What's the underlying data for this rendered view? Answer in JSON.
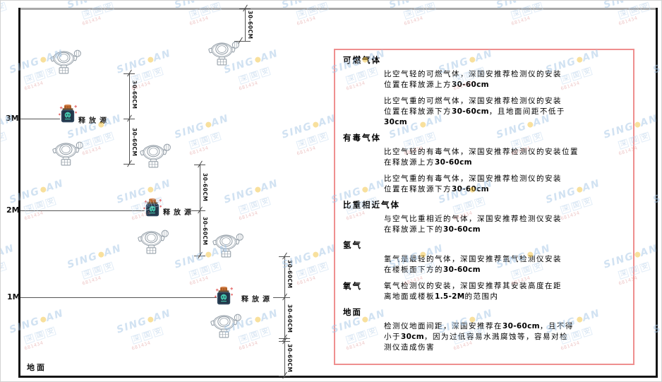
{
  "watermark": {
    "brand_left": "SING",
    "brand_right": "AN",
    "cjk": "深国安",
    "code": "681434"
  },
  "diagram": {
    "axis_labels": {
      "m3": "3M",
      "m2": "2M",
      "m1": "1M"
    },
    "ground_label": "地面",
    "source_label": "释放源",
    "dim_label": "30-60CM"
  },
  "panel": {
    "sections": [
      {
        "heading": "可燃气体",
        "inline": false,
        "paras": [
          [
            "比空气轻的可燃气体，深国安推荐检测仪的安装",
            "位置在释放源上方30-60cm"
          ],
          [
            "比空气重的可燃气体，深国安推荐检测仪的安装",
            "位置在释放源下方30-60cm，且地面间距不低于",
            "30cm"
          ]
        ]
      },
      {
        "heading": "有毒气体",
        "inline": false,
        "paras": [
          [
            "比空气轻的有毒气体，深国安推荐检测仪的安装位置",
            "在释放源上方30-60cm"
          ],
          [
            "比空气重的有毒气体，深国安推荐检测仪的安装",
            "位置在释放源下方30-60cm"
          ]
        ]
      },
      {
        "heading": "比重相近气体",
        "inline": false,
        "paras": [
          [
            "与空气比重相近的气体，深国安推荐检测仪安装",
            "在释放源上下的30-60cm"
          ]
        ]
      },
      {
        "heading": "氢气",
        "inline": false,
        "paras": [
          [
            "氢气是最轻的气体，深国安推荐氢气检测仪安装",
            "在楼板面下方的30-60cm"
          ]
        ]
      },
      {
        "heading": "氧气",
        "inline": true,
        "paras": [
          [
            "氧气检测仪的安装，深国安推荐其安装高度在距",
            "离地面或楼板1.5-2M的范围内"
          ]
        ]
      },
      {
        "heading": "地面",
        "inline": false,
        "paras": [
          [
            "检测仪地面间距，深国安推荐在30-60cm，且不得",
            "小于30cm，因为过低容易水溅腐蚀等，容易对检",
            "测仪造成伤害"
          ]
        ]
      }
    ]
  }
}
